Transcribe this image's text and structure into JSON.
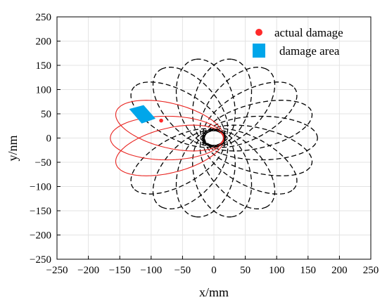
{
  "chart_data": {
    "type": "scatter",
    "title": "",
    "xlabel": "x/mm",
    "ylabel": "y/nm",
    "xlim": [
      -250,
      250
    ],
    "ylim": [
      -250,
      250
    ],
    "xticks": [
      "−250",
      "−200",
      "−150",
      "−100",
      "−50",
      "0",
      "50",
      "100",
      "150",
      "200",
      "250"
    ],
    "yticks": [
      "250",
      "200",
      "150",
      "100",
      "50",
      "0",
      "−50",
      "−100",
      "−150",
      "−200",
      "−250"
    ],
    "grid": true,
    "legend": {
      "placement": "top-right",
      "entries": [
        {
          "label": "actual damage",
          "marker": "dot",
          "color": "#ff2a2a"
        },
        {
          "label": "damage area",
          "marker": "square",
          "color": "#00a6ea"
        }
      ]
    },
    "ellipses": {
      "family": "rotated ellipses, one tip near origin",
      "semi_major": 90,
      "semi_minor": 45,
      "center_distance": 75,
      "angles_deg_dashed": [
        0,
        20,
        40,
        60,
        80,
        100,
        120,
        140,
        220,
        240,
        260,
        280,
        300,
        320,
        340
      ],
      "angles_deg_red": [
        160,
        180,
        200
      ],
      "dashed_color": "#000000",
      "red_color": "#e8231f"
    },
    "inner_circle": {
      "center": [
        0,
        0
      ],
      "radius": 18
    },
    "actual_damage_point": {
      "x": -84,
      "y": 36
    },
    "damage_area_polygon": [
      [
        -135,
        60
      ],
      [
        -112,
        68
      ],
      [
        -93,
        40
      ],
      [
        -115,
        30
      ]
    ]
  }
}
